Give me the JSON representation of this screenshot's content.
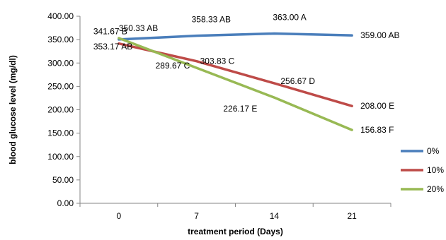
{
  "chart_data": {
    "type": "line",
    "title": "",
    "xlabel": "treatment period (Days)",
    "ylabel": "blood glucose level (mg/dl)",
    "categories": [
      "0",
      "7",
      "14",
      "21"
    ],
    "ylim": [
      0,
      400
    ],
    "yticks": [
      "0.00",
      "50.00",
      "100.00",
      "150.00",
      "200.00",
      "250.00",
      "300.00",
      "350.00",
      "400.00"
    ],
    "grid": false,
    "legend_position": "right",
    "series": [
      {
        "name": "0%",
        "color": "#4a7ebb",
        "values": [
          350.33,
          358.33,
          363.0,
          359.0
        ],
        "labels": [
          "350.33 AB",
          "358.33 AB",
          "363.00 A",
          "359.00 AB"
        ]
      },
      {
        "name": "10%",
        "color": "#be4b48",
        "values": [
          341.67,
          303.83,
          256.67,
          208.0
        ],
        "labels": [
          "341.67 B",
          "303.83 C",
          "256.67 D",
          "208.00 E"
        ]
      },
      {
        "name": "20%",
        "color": "#98b954",
        "values": [
          353.17,
          289.67,
          226.17,
          156.83
        ],
        "labels": [
          "353.17 AB",
          "289.67 C",
          "226.17 E",
          "156.83 F"
        ]
      }
    ]
  }
}
